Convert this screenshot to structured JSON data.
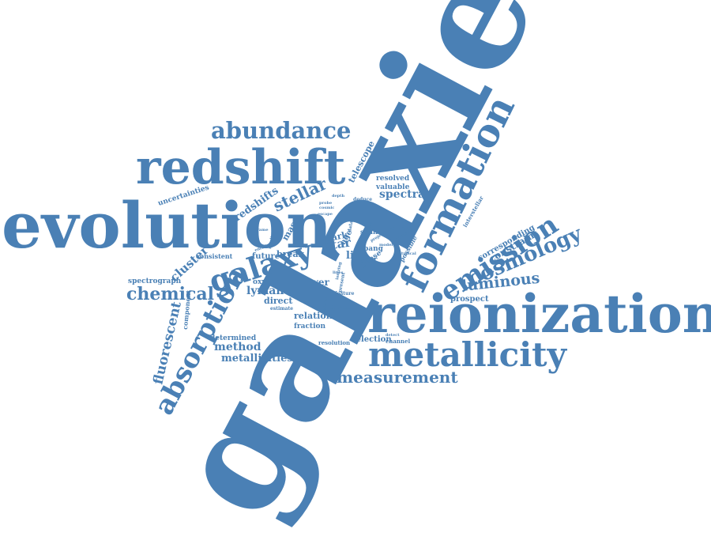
{
  "color": "#4a80b5",
  "words": {
    "galaxies": "galaxies",
    "evolution": "evolution",
    "reionization": "reionization",
    "redshift": "redshift",
    "formation": "formation",
    "metallicity": "metallicity",
    "galaxy": "galaxy",
    "absorption": "absorption",
    "emission": "emission",
    "abundance": "abundance",
    "cosmology": "cosmology",
    "chemical": "chemical",
    "measurement": "measurement",
    "luminous": "luminous",
    "fluorescent": "fluorescent",
    "stellar": "stellar",
    "metallicities": "metallicities",
    "method": "method",
    "spectra": "spectra",
    "cluster": "cluster",
    "redshifts": "redshifts",
    "lyman": "lyman",
    "star": "star",
    "line": "line",
    "lower": "lower",
    "relation": "relation",
    "constraint": "constraint",
    "corresponding": "corresponding",
    "telescope": "telescope",
    "uncertainties": "uncertainties",
    "spectrograph": "spectrograph",
    "prospect": "prospect",
    "fraction": "fraction",
    "direct": "direct",
    "oxygen": "oxygen",
    "dark": "dark",
    "mas": "mas",
    "future": "future",
    "break": "break",
    "consistent": "consistent",
    "component": "component",
    "determined": "determined",
    "selection": "selection",
    "resolution": "resolution",
    "channel": "channel",
    "resolved": "resolved",
    "valuable": "valuable",
    "age": "age",
    "bang": "bang",
    "year": "year",
    "phase": "phase",
    "similar": "similar",
    "possible": "possible",
    "interstellar": "interstellar",
    "various": "various",
    "estimate": "estimate",
    "feature": "feature",
    "deduce": "deduce",
    "doublet": "doublet",
    "sample": "sample",
    "depth": "depth",
    "cosmic": "cosmic",
    "escape": "escape",
    "probe": "probe",
    "model": "model",
    "detect": "detect",
    "typical": "typical",
    "present": "present",
    "optical": "optical",
    "ionizing": "ionizing",
    "lines": "lines",
    "frame": "frame",
    "result": "result",
    "enrich": "enrich",
    "solar": "solar",
    "project": "project",
    "data": "data"
  }
}
